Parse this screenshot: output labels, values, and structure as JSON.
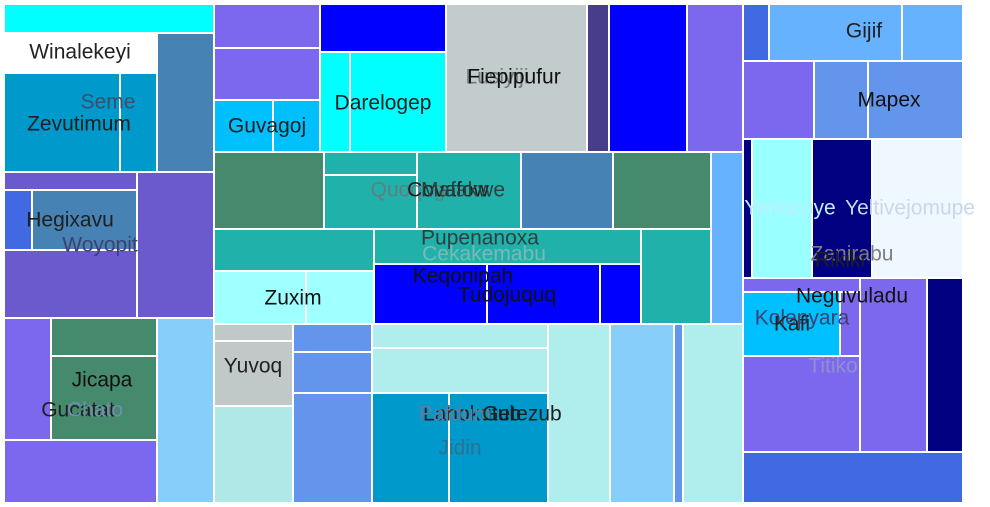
{
  "chart_data": {
    "type": "treemap",
    "items": [
      {
        "label": "Winalekeyi",
        "color": "#00FFFF"
      },
      {
        "label": "Seme",
        "color": "#4682B4"
      },
      {
        "label": "Zevutimum",
        "color": "#0099CC"
      },
      {
        "label": "Hegixavu",
        "color": "#6A5ACD"
      },
      {
        "label": "Woyopit",
        "color": "#6A5ACD"
      },
      {
        "label": "Jicapa",
        "color": "#468A6E"
      },
      {
        "label": "Gucatat",
        "color": "#7B68EE"
      },
      {
        "label": "Chato",
        "color": "#87CEFA"
      },
      {
        "label": "Guvagoj",
        "color": "#00BFFF"
      },
      {
        "label": "Darelogep",
        "color": "#00FFFF"
      },
      {
        "label": "Lusiyiji",
        "color": "#C2CCCC"
      },
      {
        "label": "Fiepipufur",
        "color": "#C2CCCC"
      },
      {
        "label": "Quoqug",
        "color": "#20B2AA"
      },
      {
        "label": "Covafow",
        "color": "#20B2AA"
      },
      {
        "label": "Mafakwe",
        "color": "#468A6E"
      },
      {
        "label": "Pupenanoxa",
        "color": "#20B2AA"
      },
      {
        "label": "Cekakemabu",
        "color": "#20B2AA"
      },
      {
        "label": "Zuxim",
        "color": "#A0FFFF"
      },
      {
        "label": "Keqonipah",
        "color": "#0000FF"
      },
      {
        "label": "Tudojuquq",
        "color": "#0000FF"
      },
      {
        "label": "Yuvoq",
        "color": "#C0C8C8"
      },
      {
        "label": "Lahokutub",
        "color": "#0099CC"
      },
      {
        "label": "Pafdum",
        "color": "#0099CC"
      },
      {
        "label": "Getezub",
        "color": "#0099CC"
      },
      {
        "label": "Jidin",
        "color": "#0099CC"
      },
      {
        "label": "Gijif",
        "color": "#66B2FF"
      },
      {
        "label": "Mapex",
        "color": "#6495ED"
      },
      {
        "label": "Yenocuye",
        "color": "#99FFFF"
      },
      {
        "label": "Yeltivejomupe",
        "color": "#F0F8FF"
      },
      {
        "label": "Zanirabu",
        "color": "#000080"
      },
      {
        "label": "Rikiki",
        "color": "#000080"
      },
      {
        "label": "Neguvuladu",
        "color": "#7B68EE"
      },
      {
        "label": "Kolepyara",
        "color": "#00BFFF"
      },
      {
        "label": "Kafi",
        "color": "#00BFFF"
      },
      {
        "label": "Titiko",
        "color": "#7B68EE"
      }
    ]
  }
}
